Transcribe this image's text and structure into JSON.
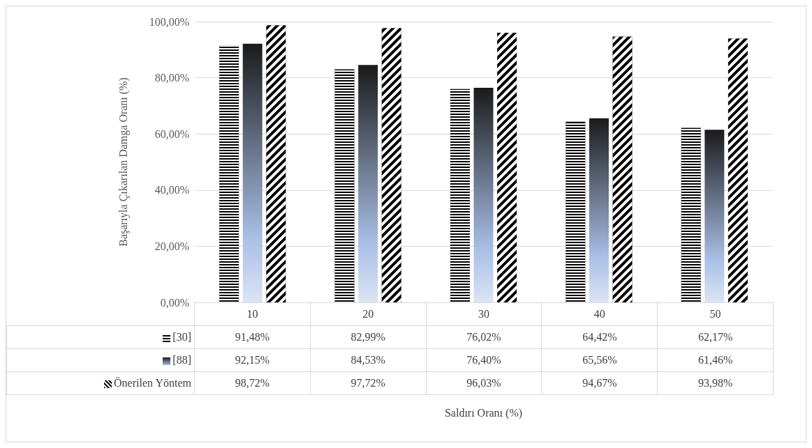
{
  "chart_data": {
    "type": "bar",
    "annotations": [
      "Saldırı Oranı (%)"
    ],
    "ylabel": "Başarıyla Çıkarılan Damga Oranı (%)",
    "categories": [
      "10",
      "20",
      "30",
      "40",
      "50"
    ],
    "series": [
      {
        "name": "[30]",
        "color": "#000000",
        "values": [
          91.48,
          82.99,
          76.02,
          64.42,
          62.17
        ],
        "value_labels": [
          "91,48%",
          "82,99%",
          "76,02%",
          "64,42%",
          "62,17%"
        ]
      },
      {
        "name": "[88]",
        "color": "#1a1a1a",
        "values": [
          92.15,
          84.53,
          76.4,
          65.56,
          61.46
        ],
        "value_labels": [
          "92,15%",
          "84,53%",
          "76,40%",
          "65,56%",
          "61,46%"
        ]
      },
      {
        "name": "Önerilen Yöntem",
        "color": "#000001",
        "values": [
          98.72,
          97.72,
          96.03,
          94.67,
          93.98
        ],
        "value_labels": [
          "98,72%",
          "97,72%",
          "96,03%",
          "94,67%",
          "93,98%"
        ]
      }
    ],
    "ylim": [
      0,
      100
    ],
    "yticks": [
      {
        "value": 0,
        "label": "0,00%"
      },
      {
        "value": 20,
        "label": "20,00%"
      },
      {
        "value": 40,
        "label": "40,00%"
      },
      {
        "value": 60,
        "label": "60,00%"
      },
      {
        "value": 80,
        "label": "80,00%"
      },
      {
        "value": 100,
        "label": "100,00%"
      }
    ],
    "grid": "y",
    "legend": "bottom left"
  }
}
